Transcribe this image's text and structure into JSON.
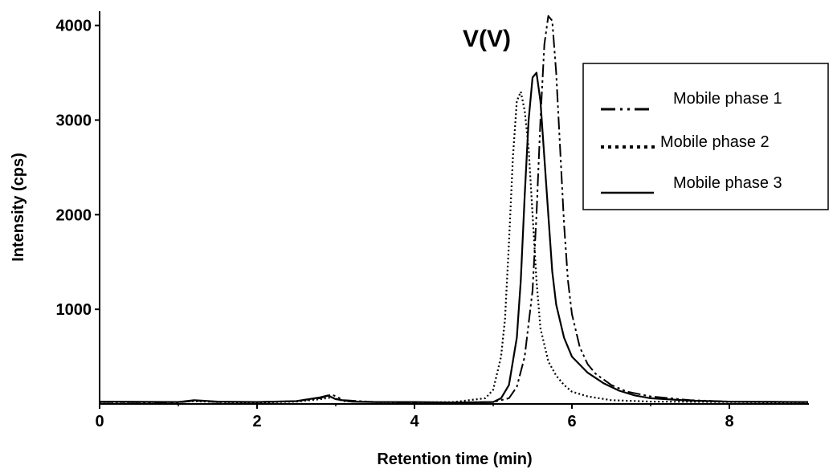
{
  "chart_data": {
    "type": "line",
    "title": "V(V)",
    "xlabel": "Retention time (min)",
    "ylabel": "Intensity (cps)",
    "xlim": [
      0,
      9
    ],
    "ylim": [
      0,
      4150
    ],
    "xticks": [
      0,
      2,
      4,
      6,
      8
    ],
    "yticks": [
      1000,
      2000,
      3000,
      4000
    ],
    "grid": false,
    "legend_position": "top-right",
    "series": [
      {
        "name": "Mobile phase 1",
        "style": "dash-dot-dot",
        "x": [
          0,
          1.0,
          1.2,
          1.5,
          2.0,
          2.5,
          2.8,
          2.95,
          3.1,
          3.5,
          4.0,
          4.5,
          5.0,
          5.2,
          5.3,
          5.4,
          5.5,
          5.55,
          5.6,
          5.65,
          5.7,
          5.75,
          5.8,
          5.85,
          5.9,
          5.95,
          6.0,
          6.1,
          6.2,
          6.3,
          6.5,
          6.7,
          7.0,
          7.5,
          8.0,
          9.0
        ],
        "values": [
          20,
          15,
          35,
          20,
          20,
          30,
          60,
          100,
          40,
          20,
          15,
          15,
          20,
          60,
          180,
          500,
          1200,
          2000,
          3000,
          3800,
          4100,
          4050,
          3500,
          2700,
          1900,
          1300,
          950,
          600,
          420,
          320,
          200,
          130,
          80,
          40,
          25,
          20
        ]
      },
      {
        "name": "Mobile phase 2",
        "style": "dotted",
        "x": [
          0,
          1.0,
          1.2,
          1.5,
          2.0,
          2.5,
          2.8,
          2.95,
          3.1,
          3.5,
          4.0,
          4.5,
          4.9,
          5.0,
          5.1,
          5.15,
          5.2,
          5.25,
          5.3,
          5.35,
          5.4,
          5.45,
          5.5,
          5.55,
          5.6,
          5.7,
          5.8,
          5.9,
          6.0,
          6.2,
          6.5,
          7.0,
          8.0,
          9.0
        ],
        "values": [
          20,
          20,
          30,
          20,
          15,
          25,
          50,
          70,
          30,
          20,
          15,
          20,
          60,
          150,
          500,
          900,
          1700,
          2600,
          3200,
          3300,
          3100,
          2700,
          2000,
          1300,
          800,
          450,
          300,
          200,
          130,
          80,
          40,
          25,
          20,
          15
        ]
      },
      {
        "name": "Mobile phase 3",
        "style": "solid",
        "x": [
          0,
          1.0,
          1.2,
          1.5,
          2.0,
          2.5,
          2.8,
          2.9,
          3.0,
          3.2,
          3.5,
          4.0,
          4.5,
          5.0,
          5.1,
          5.2,
          5.3,
          5.35,
          5.4,
          5.45,
          5.5,
          5.55,
          5.6,
          5.65,
          5.7,
          5.75,
          5.8,
          5.9,
          6.0,
          6.2,
          6.4,
          6.6,
          6.8,
          7.0,
          7.5,
          8.0,
          9.0
        ],
        "values": [
          25,
          20,
          40,
          25,
          20,
          30,
          70,
          90,
          50,
          25,
          20,
          20,
          15,
          20,
          60,
          200,
          700,
          1300,
          2200,
          3000,
          3450,
          3500,
          3200,
          2600,
          2000,
          1400,
          1050,
          700,
          500,
          330,
          220,
          140,
          90,
          60,
          35,
          25,
          20
        ]
      }
    ]
  }
}
